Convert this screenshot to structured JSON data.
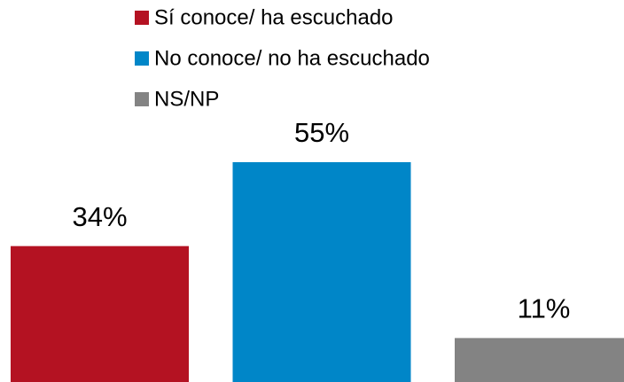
{
  "chart_data": {
    "type": "bar",
    "series": [
      {
        "name": "Sí conoce/ ha escuchado",
        "color": "#b41222",
        "values": [
          34
        ],
        "value_labels": [
          "34%"
        ]
      },
      {
        "name": "No conoce/ no ha escuchado",
        "color": "#0086c8",
        "values": [
          55
        ],
        "value_labels": [
          "55%"
        ]
      },
      {
        "name": "NS/NP",
        "color": "#838383",
        "values": [
          11
        ],
        "value_labels": [
          "11%"
        ]
      }
    ],
    "legend": "top"
  }
}
